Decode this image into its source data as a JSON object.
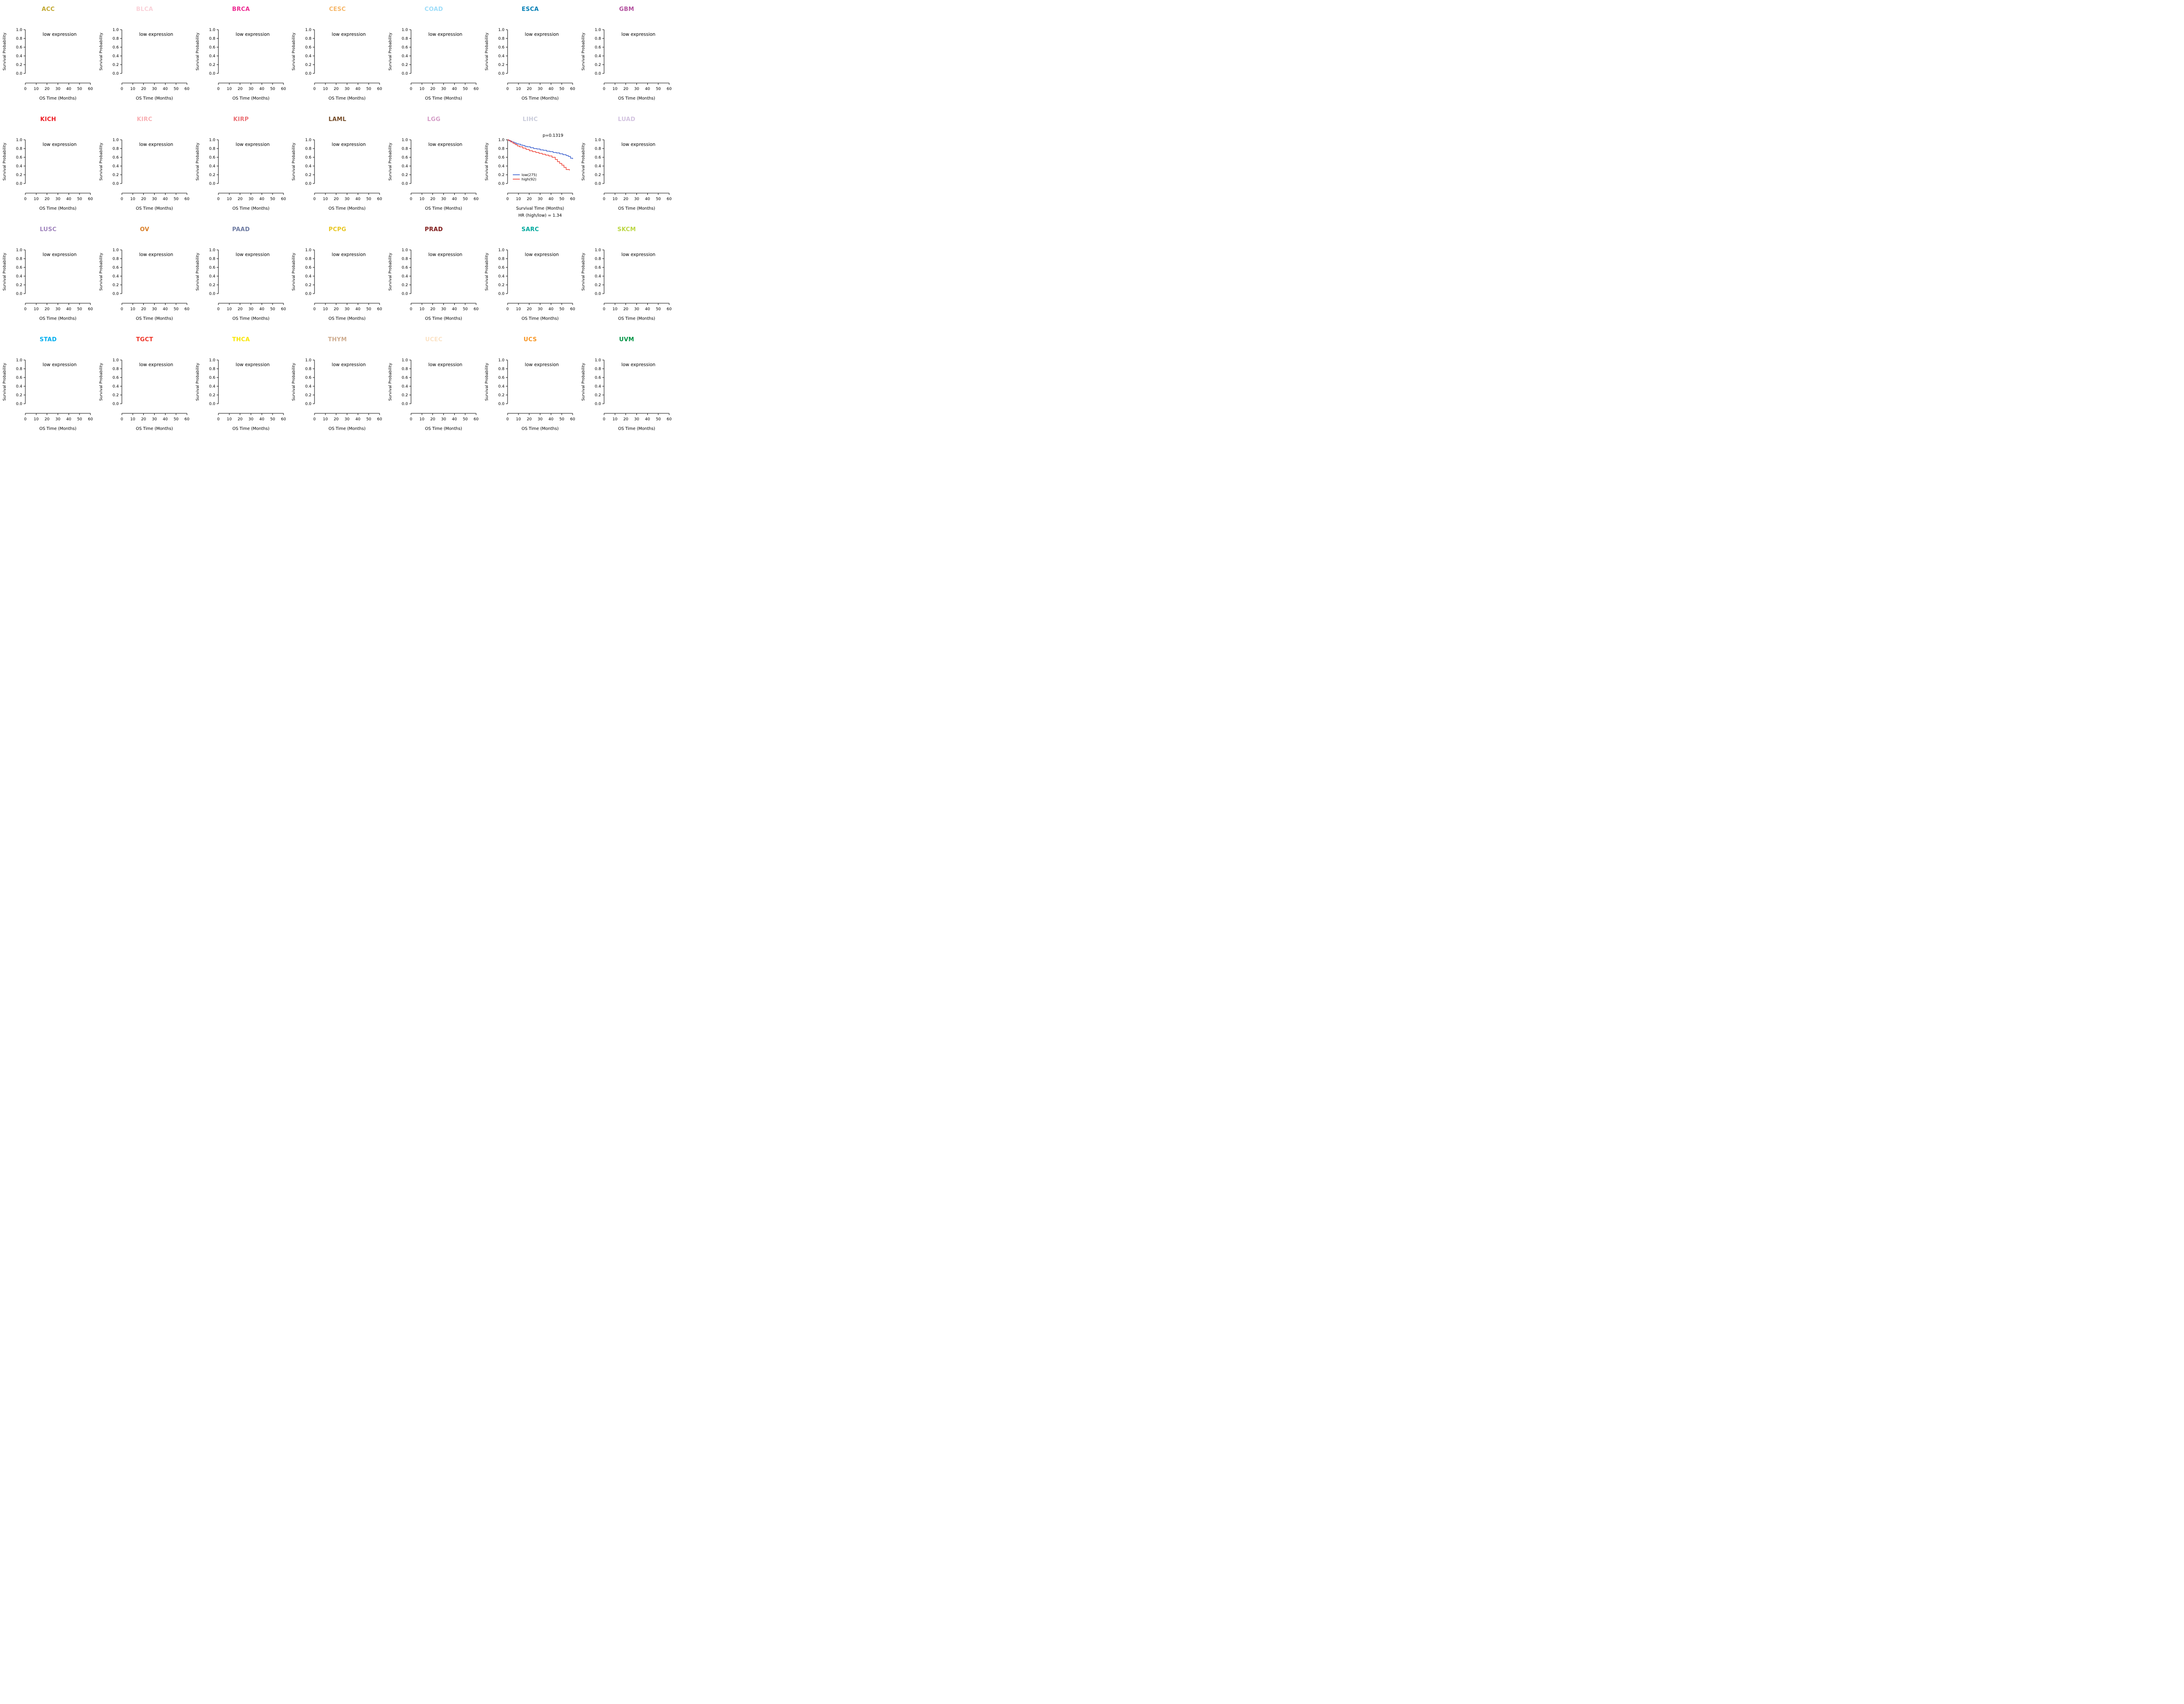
{
  "page": {
    "background": "#FFFFFF",
    "description_text": "Grid of Kaplan-Meier overall survival plots across TCGA cancer types"
  },
  "chart_data": {
    "type": "line",
    "layout": {
      "rows": 4,
      "cols": 7
    },
    "shared_axes": {
      "ylabel": "Survival Probability",
      "yticks": [
        "0.0",
        "0.2",
        "0.4",
        "0.6",
        "0.8",
        "1.0"
      ],
      "ylim": [
        0.0,
        1.0
      ],
      "xticks": [
        0,
        10,
        20,
        30,
        40,
        50,
        60
      ],
      "xlim": [
        0,
        60
      ],
      "xlabel_empty": "OS Time (Months)",
      "empty_text": "low expression",
      "grid": "off",
      "axis_color": "#000000"
    },
    "panels": [
      {
        "code": "ACC",
        "color": "#C1A72F",
        "status": "no_plot"
      },
      {
        "code": "BLCA",
        "color": "#FAD2D9",
        "status": "no_plot"
      },
      {
        "code": "BRCA",
        "color": "#ED2891",
        "status": "no_plot"
      },
      {
        "code": "CESC",
        "color": "#F6B667",
        "status": "no_plot"
      },
      {
        "code": "COAD",
        "color": "#9EDDF9",
        "status": "no_plot"
      },
      {
        "code": "ESCA",
        "color": "#007EB5",
        "status": "no_plot"
      },
      {
        "code": "GBM",
        "color": "#B2509E",
        "status": "no_plot"
      },
      {
        "code": "KICH",
        "color": "#ED1C24",
        "status": "no_plot"
      },
      {
        "code": "KIRC",
        "color": "#F8AFB3",
        "status": "no_plot"
      },
      {
        "code": "KIRP",
        "color": "#EA7075",
        "status": "no_plot"
      },
      {
        "code": "LAML",
        "color": "#754C29",
        "status": "no_plot"
      },
      {
        "code": "LGG",
        "color": "#D49DC7",
        "status": "no_plot"
      },
      {
        "code": "LIHC",
        "color": "#CACCDB",
        "status": "km_plot",
        "pvalue": "p=0.1319",
        "xlabel": "Survival Time (Months)",
        "hr_text": "HR (high/low) =  1.34",
        "legend": [
          {
            "label": "low(275)",
            "color": "#3A5FCD"
          },
          {
            "label": "high(92)",
            "color": "#EE4035"
          }
        ],
        "series": [
          {
            "name": "low",
            "color": "#3A5FCD",
            "x": [
              0,
              1,
              2,
              4,
              6,
              8,
              10,
              12,
              14,
              16,
              18,
              21,
              24,
              27,
              30,
              33,
              36,
              39,
              42,
              45,
              48,
              51,
              54,
              56,
              58,
              60
            ],
            "y": [
              1.0,
              0.99,
              0.97,
              0.95,
              0.93,
              0.91,
              0.9,
              0.88,
              0.87,
              0.85,
              0.84,
              0.82,
              0.8,
              0.79,
              0.77,
              0.76,
              0.74,
              0.73,
              0.71,
              0.7,
              0.68,
              0.66,
              0.64,
              0.62,
              0.58,
              0.56
            ]
          },
          {
            "name": "high",
            "color": "#EE4035",
            "x": [
              0,
              1,
              3,
              5,
              7,
              9,
              11,
              14,
              17,
              20,
              23,
              26,
              29,
              32,
              35,
              38,
              41,
              44,
              46,
              48,
              50,
              52,
              54,
              57
            ],
            "y": [
              1.0,
              0.98,
              0.95,
              0.92,
              0.89,
              0.86,
              0.84,
              0.81,
              0.78,
              0.75,
              0.73,
              0.71,
              0.69,
              0.67,
              0.65,
              0.63,
              0.6,
              0.55,
              0.5,
              0.46,
              0.42,
              0.37,
              0.32,
              0.3
            ]
          }
        ]
      },
      {
        "code": "LUAD",
        "color": "#D3C3E0",
        "status": "no_plot"
      },
      {
        "code": "LUSC",
        "color": "#A084BD",
        "status": "no_plot"
      },
      {
        "code": "OV",
        "color": "#D97D25",
        "status": "no_plot"
      },
      {
        "code": "PAAD",
        "color": "#6E7BA2",
        "status": "no_plot"
      },
      {
        "code": "PCPG",
        "color": "#E8C51D",
        "status": "no_plot"
      },
      {
        "code": "PRAD",
        "color": "#7E1918",
        "status": "no_plot"
      },
      {
        "code": "SARC",
        "color": "#00A99D",
        "status": "no_plot"
      },
      {
        "code": "SKCM",
        "color": "#BBD642",
        "status": "no_plot"
      },
      {
        "code": "STAD",
        "color": "#00AEEF",
        "status": "no_plot"
      },
      {
        "code": "TGCT",
        "color": "#EE3124",
        "status": "no_plot"
      },
      {
        "code": "THCA",
        "color": "#F9E600",
        "status": "no_plot"
      },
      {
        "code": "THYM",
        "color": "#CEAC8F",
        "status": "no_plot"
      },
      {
        "code": "UCEC",
        "color": "#FBE3C7",
        "status": "no_plot"
      },
      {
        "code": "UCS",
        "color": "#F89420",
        "status": "no_plot"
      },
      {
        "code": "UVM",
        "color": "#009444",
        "status": "no_plot"
      }
    ]
  }
}
